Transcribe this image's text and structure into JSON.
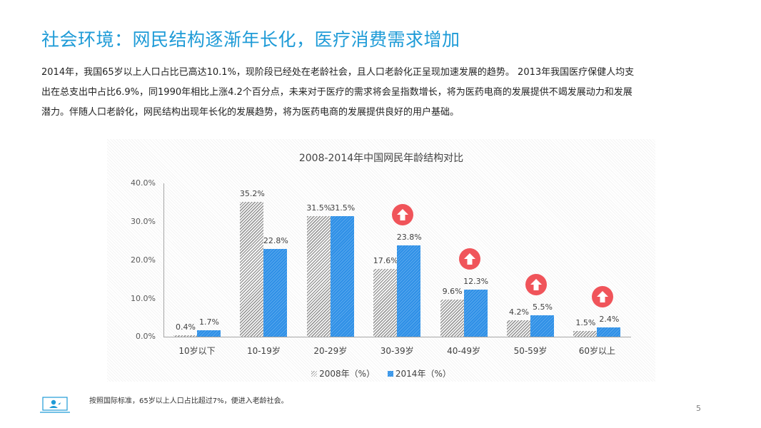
{
  "slide": {
    "title": "社会环境：网民结构逐渐年长化，医疗消费需求增加",
    "body_lines": [
      "2014年，我国65岁以上人口占比已高达10.1%，现阶段已经处在老龄社会，且人口老龄化正呈现加速发展的趋势。  2013年我国医疗保健人均支",
      "出在总支出中占比6.9%，同1990年相比上涨4.2个百分点，未来对于医疗的需求将会呈指数增长，将为医药电商的发展提供不竭发展动力和发展",
      "潜力。伴随人口老龄化，网民结构出现年长化的发展趋势，将为医药电商的发展提供良好的用户基础。"
    ],
    "footnote": "按照国际标准，65岁以上人口占比超过7%，便进入老龄社会。",
    "footnote_icon": "presenter-screen-icon",
    "page_number": "5"
  },
  "chart": {
    "title": "2008-2014年中国网民年龄结构对比",
    "y_ticks": [
      "40.0%",
      "30.0%",
      "20.0%",
      "10.0%",
      "0.0%"
    ],
    "legend": [
      "2008年（%）",
      "2014年（%）"
    ],
    "bar_labels_2008": [
      "0.4%",
      "35.2%",
      "31.5%",
      "17.6%",
      "9.6%",
      "4.2%",
      "1.5%"
    ],
    "bar_labels_2014": [
      "1.7%",
      "22.8%",
      "31.5%",
      "23.8%",
      "12.3%",
      "5.5%",
      "2.4%"
    ],
    "categories": [
      "10岁以下",
      "10-19岁",
      "20-29岁",
      "30-39岁",
      "40-49岁",
      "50-59岁",
      "60岁以上"
    ],
    "colors": {
      "2008": "#9a9a9a",
      "2014": "#2e8fe6",
      "up_arrow": "#f0545a",
      "title": "#1e9bd7"
    }
  },
  "chart_data": {
    "type": "bar",
    "title": "2008-2014年中国网民年龄结构对比",
    "categories": [
      "10岁以下",
      "10-19岁",
      "20-29岁",
      "30-39岁",
      "40-49岁",
      "50-59岁",
      "60岁以上"
    ],
    "series": [
      {
        "name": "2008年（%）",
        "values": [
          0.4,
          35.2,
          31.5,
          17.6,
          9.6,
          4.2,
          1.5
        ]
      },
      {
        "name": "2014年（%）",
        "values": [
          1.7,
          22.8,
          31.5,
          23.8,
          12.3,
          5.5,
          2.4
        ]
      }
    ],
    "xlabel": "",
    "ylabel": "",
    "ylim": [
      0,
      40
    ],
    "yticks": [
      "0.0%",
      "10.0%",
      "20.0%",
      "30.0%",
      "40.0%"
    ],
    "grid": false,
    "legend_position": "bottom",
    "annotations": [
      {
        "type": "up-arrow",
        "category": "30-39岁"
      },
      {
        "type": "up-arrow",
        "category": "40-49岁"
      },
      {
        "type": "up-arrow",
        "category": "50-59岁"
      },
      {
        "type": "up-arrow",
        "category": "60岁以上"
      }
    ]
  }
}
